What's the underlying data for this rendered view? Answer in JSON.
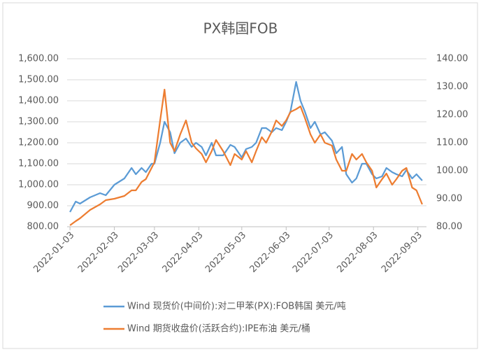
{
  "chart_data": {
    "type": "line",
    "title": "PX韩国FOB",
    "x": [
      "2022-01-03",
      "2022-01-07",
      "2022-01-10",
      "2022-01-17",
      "2022-01-24",
      "2022-01-28",
      "2022-02-03",
      "2022-02-10",
      "2022-02-15",
      "2022-02-18",
      "2022-02-22",
      "2022-02-25",
      "2022-03-01",
      "2022-03-03",
      "2022-03-07",
      "2022-03-10",
      "2022-03-14",
      "2022-03-17",
      "2022-03-21",
      "2022-03-25",
      "2022-03-29",
      "2022-04-01",
      "2022-04-05",
      "2022-04-08",
      "2022-04-12",
      "2022-04-15",
      "2022-04-20",
      "2022-04-25",
      "2022-04-28",
      "2022-05-03",
      "2022-05-06",
      "2022-05-10",
      "2022-05-13",
      "2022-05-17",
      "2022-05-20",
      "2022-05-24",
      "2022-05-27",
      "2022-05-31",
      "2022-06-03",
      "2022-06-06",
      "2022-06-10",
      "2022-06-13",
      "2022-06-16",
      "2022-06-20",
      "2022-06-23",
      "2022-06-27",
      "2022-06-30",
      "2022-07-05",
      "2022-07-08",
      "2022-07-12",
      "2022-07-15",
      "2022-07-19",
      "2022-07-22",
      "2022-07-26",
      "2022-07-29",
      "2022-08-02",
      "2022-08-05",
      "2022-08-09",
      "2022-08-12",
      "2022-08-16",
      "2022-08-19",
      "2022-08-23",
      "2022-08-26",
      "2022-08-30",
      "2022-09-02",
      "2022-09-06"
    ],
    "series": [
      {
        "name": "Wind 现货价(中间价):对二甲苯(PX):FOB韩国 美元/吨",
        "color": "#5b9bd5",
        "values": [
          870,
          920,
          910,
          940,
          960,
          950,
          1000,
          1030,
          1080,
          1050,
          1080,
          1060,
          1100,
          1100,
          1200,
          1300,
          1250,
          1150,
          1200,
          1220,
          1180,
          1200,
          1180,
          1140,
          1200,
          1140,
          1140,
          1190,
          1180,
          1130,
          1170,
          1180,
          1200,
          1270,
          1270,
          1250,
          1270,
          1260,
          1300,
          1350,
          1490,
          1400,
          1350,
          1270,
          1300,
          1240,
          1250,
          1210,
          1150,
          1180,
          1050,
          1010,
          1030,
          1100,
          1100,
          1050,
          1030,
          1040,
          1080,
          1060,
          1050,
          1040,
          1070,
          1030,
          1050,
          1020
        ]
      },
      {
        "name": "Wind 期货收盘价(活跃合约):IPE布油 美元/桶",
        "color": "#ed7d31",
        "axis": "y2",
        "values": [
          80.5,
          82,
          83,
          86,
          88,
          89.5,
          90,
          91,
          93,
          93,
          96,
          97,
          101,
          103,
          118,
          129,
          110,
          107,
          113,
          118,
          110,
          108,
          106,
          103,
          107,
          111,
          107,
          102,
          106,
          104,
          107,
          103,
          107,
          112,
          110,
          114,
          118,
          116,
          118,
          121,
          122,
          123,
          119,
          113,
          110,
          113,
          110,
          109,
          104,
          100,
          100,
          106,
          104,
          106,
          103,
          100,
          94,
          97,
          99,
          95,
          97,
          100,
          101,
          94,
          93,
          88
        ]
      }
    ],
    "xlim": [
      "2022-01-01",
      "2022-09-09"
    ],
    "xticks": [
      "2022-01-03",
      "2022-02-03",
      "2022-03-03",
      "2022-04-03",
      "2022-05-03",
      "2022-06-03",
      "2022-07-03",
      "2022-08-03",
      "2022-09-03"
    ],
    "ylim": [
      800,
      1600
    ],
    "yticks": [
      {
        "value": 800,
        "label": "800.00"
      },
      {
        "value": 900,
        "label": "900.00"
      },
      {
        "value": 1000,
        "label": "1,000.00"
      },
      {
        "value": 1100,
        "label": "1,100.00"
      },
      {
        "value": 1200,
        "label": "1,200.00"
      },
      {
        "value": 1300,
        "label": "1,300.00"
      },
      {
        "value": 1400,
        "label": "1,400.00"
      },
      {
        "value": 1500,
        "label": "1,500.00"
      },
      {
        "value": 1600,
        "label": "1,600.00"
      }
    ],
    "y2lim": [
      80,
      140
    ],
    "y2ticks": [
      {
        "value": 80,
        "label": "80.00"
      },
      {
        "value": 90,
        "label": "90.00"
      },
      {
        "value": 100,
        "label": "100.00"
      },
      {
        "value": 110,
        "label": "110.00"
      },
      {
        "value": 120,
        "label": "120.00"
      },
      {
        "value": 130,
        "label": "130.00"
      },
      {
        "value": 140,
        "label": "140.00"
      }
    ],
    "legend": "bottom"
  }
}
